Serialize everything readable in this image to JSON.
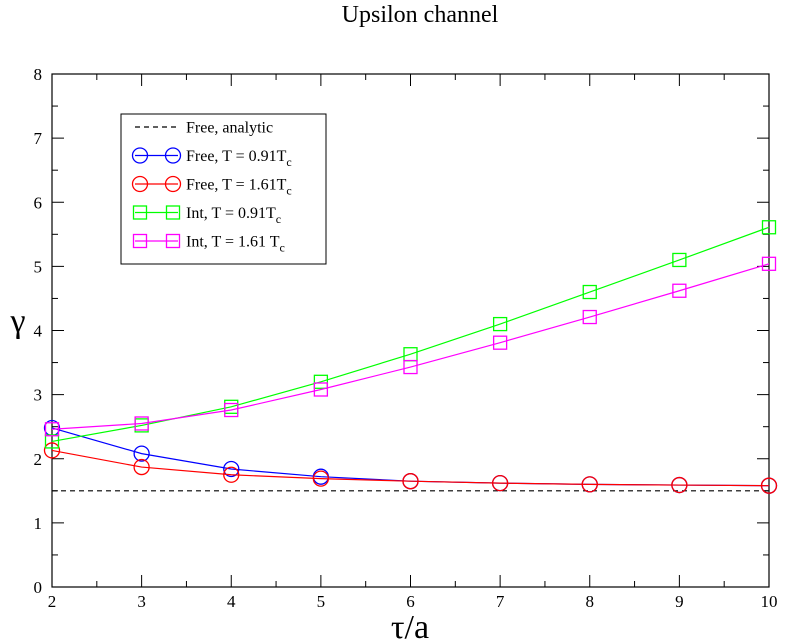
{
  "chart_data": {
    "type": "line",
    "title": "Upsilon channel",
    "xlabel": "τ/a",
    "ylabel": "γ",
    "xlim": [
      2,
      10
    ],
    "ylim": [
      0,
      8
    ],
    "xticks": [
      2,
      3,
      4,
      5,
      6,
      7,
      8,
      9,
      10
    ],
    "yticks": [
      0,
      1,
      2,
      3,
      4,
      5,
      6,
      7,
      8
    ],
    "grid": false,
    "legend_position": "top-left",
    "series": [
      {
        "name": "Free, analytic",
        "style": "dashed",
        "marker": "none",
        "color": "#000000",
        "x": [
          2,
          10
        ],
        "y": [
          1.5,
          1.5
        ]
      },
      {
        "name": "Free, T = 0.91T",
        "name_subscript": "c",
        "style": "solid",
        "marker": "circle",
        "color": "#0000ff",
        "x": [
          2,
          3,
          4,
          5,
          6,
          7,
          8,
          9,
          10
        ],
        "y": [
          2.48,
          2.08,
          1.84,
          1.72,
          1.65,
          1.62,
          1.6,
          1.59,
          1.58
        ]
      },
      {
        "name": "Free, T = 1.61T",
        "name_subscript": "c",
        "style": "solid",
        "marker": "circle",
        "color": "#ff0000",
        "x": [
          2,
          3,
          4,
          5,
          6,
          7,
          8,
          9,
          10
        ],
        "y": [
          2.13,
          1.87,
          1.75,
          1.69,
          1.65,
          1.62,
          1.6,
          1.59,
          1.58
        ]
      },
      {
        "name": "Int, T = 0.91T",
        "name_subscript": "c",
        "style": "solid",
        "marker": "square",
        "color": "#00ff00",
        "x": [
          2,
          3,
          4,
          5,
          6,
          7,
          8,
          9,
          10
        ],
        "y": [
          2.27,
          2.52,
          2.81,
          3.2,
          3.63,
          4.1,
          4.6,
          5.1,
          5.61
        ]
      },
      {
        "name": "Int, T = 1.61 T",
        "name_subscript": "c",
        "style": "solid",
        "marker": "square",
        "color": "#ff00ff",
        "x": [
          2,
          3,
          4,
          5,
          6,
          7,
          8,
          9,
          10
        ],
        "y": [
          2.46,
          2.55,
          2.76,
          3.08,
          3.43,
          3.81,
          4.21,
          4.62,
          5.04
        ]
      }
    ]
  }
}
